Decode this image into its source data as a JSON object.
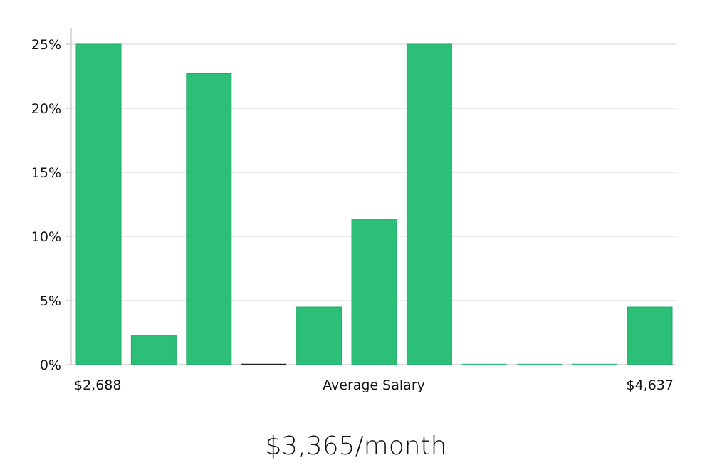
{
  "chart_data": {
    "type": "bar",
    "title": "",
    "xlabel": "Average Salary",
    "ylabel": "",
    "x_range_labels": {
      "min": "$2,688",
      "max": "$4,637"
    },
    "bins": 11,
    "values": [
      25,
      2.3,
      22.7,
      0,
      4.5,
      11.3,
      25,
      0,
      0,
      0,
      4.5
    ],
    "ylim": [
      0,
      25
    ],
    "yticks": [
      0,
      5,
      10,
      15,
      20,
      25
    ],
    "ytick_labels": [
      "0%",
      "5%",
      "10%",
      "15%",
      "20%",
      "25%"
    ],
    "grid": true,
    "colors": {
      "bar": "#2bbf78",
      "bar_stroke": "#23ab68",
      "grid": "#e3e3e3",
      "axis": "#d0d0d0",
      "zero_bar": "#222222"
    }
  },
  "summary": {
    "text": "$3,365/month"
  }
}
